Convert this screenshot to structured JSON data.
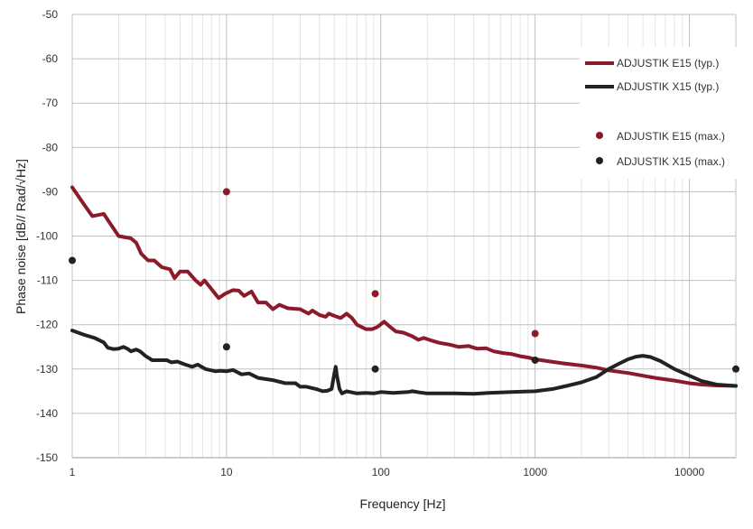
{
  "chart_data": {
    "type": "line",
    "title": "",
    "xlabel": "Frequency [Hz]",
    "ylabel": "Phase noise [dB// Rad/√Hz]",
    "xscale": "log",
    "xlim": [
      1,
      20000
    ],
    "ylim": [
      -150,
      -50
    ],
    "x_ticks": [
      "1",
      "10",
      "100",
      "1000",
      "10000"
    ],
    "y_ticks": [
      "-50",
      "-60",
      "-70",
      "-80",
      "-90",
      "-100",
      "-110",
      "-120",
      "-130",
      "-140",
      "-150"
    ],
    "grid": true,
    "legend_position": "top-right",
    "series": [
      {
        "name": "ADJUSTIK E15 (typ.)",
        "style": "line",
        "color": "#8b1a2b",
        "points": [
          [
            1,
            -89
          ],
          [
            1.2,
            -93
          ],
          [
            1.35,
            -95.5
          ],
          [
            1.6,
            -95
          ],
          [
            1.75,
            -97
          ],
          [
            2,
            -100
          ],
          [
            2.4,
            -100.5
          ],
          [
            2.6,
            -101.5
          ],
          [
            2.8,
            -104
          ],
          [
            3.1,
            -105.5
          ],
          [
            3.4,
            -105.5
          ],
          [
            3.8,
            -107
          ],
          [
            4.3,
            -107.5
          ],
          [
            4.6,
            -109.5
          ],
          [
            5,
            -108
          ],
          [
            5.6,
            -108
          ],
          [
            6.3,
            -110
          ],
          [
            6.8,
            -111
          ],
          [
            7.2,
            -110
          ],
          [
            8,
            -112
          ],
          [
            8.9,
            -114
          ],
          [
            9.8,
            -113
          ],
          [
            11,
            -112.2
          ],
          [
            12,
            -112.3
          ],
          [
            13,
            -113.5
          ],
          [
            14.5,
            -112.5
          ],
          [
            16,
            -115
          ],
          [
            18,
            -115
          ],
          [
            20,
            -116.5
          ],
          [
            22,
            -115.5
          ],
          [
            25,
            -116.3
          ],
          [
            30,
            -116.5
          ],
          [
            34,
            -117.5
          ],
          [
            36,
            -116.8
          ],
          [
            40,
            -117.8
          ],
          [
            44,
            -118.2
          ],
          [
            46,
            -117.5
          ],
          [
            50,
            -118
          ],
          [
            55,
            -118.5
          ],
          [
            60,
            -117.5
          ],
          [
            65,
            -118.5
          ],
          [
            70,
            -120
          ],
          [
            80,
            -121
          ],
          [
            88,
            -121
          ],
          [
            95,
            -120.5
          ],
          [
            105,
            -119.3
          ],
          [
            115,
            -120.5
          ],
          [
            125,
            -121.5
          ],
          [
            140,
            -121.8
          ],
          [
            160,
            -122.6
          ],
          [
            175,
            -123.4
          ],
          [
            190,
            -123
          ],
          [
            210,
            -123.5
          ],
          [
            240,
            -124.1
          ],
          [
            280,
            -124.5
          ],
          [
            320,
            -125
          ],
          [
            370,
            -124.8
          ],
          [
            420,
            -125.4
          ],
          [
            480,
            -125.3
          ],
          [
            540,
            -126
          ],
          [
            620,
            -126.4
          ],
          [
            700,
            -126.6
          ],
          [
            800,
            -127.1
          ],
          [
            900,
            -127.4
          ],
          [
            1000,
            -127.8
          ],
          [
            1200,
            -128.2
          ],
          [
            1500,
            -128.7
          ],
          [
            2000,
            -129.2
          ],
          [
            2500,
            -129.7
          ],
          [
            3000,
            -130.3
          ],
          [
            4000,
            -130.9
          ],
          [
            5000,
            -131.5
          ],
          [
            6000,
            -132
          ],
          [
            8000,
            -132.6
          ],
          [
            10000,
            -133.2
          ],
          [
            12000,
            -133.5
          ],
          [
            15000,
            -133.7
          ],
          [
            20000,
            -133.8
          ]
        ]
      },
      {
        "name": "ADJUSTIK X15 (typ.)",
        "style": "line",
        "color": "#222222",
        "points": [
          [
            1,
            -121.3
          ],
          [
            1.2,
            -122.3
          ],
          [
            1.4,
            -123
          ],
          [
            1.6,
            -124
          ],
          [
            1.7,
            -125.2
          ],
          [
            1.85,
            -125.5
          ],
          [
            2,
            -125.4
          ],
          [
            2.15,
            -125
          ],
          [
            2.3,
            -125.5
          ],
          [
            2.4,
            -126
          ],
          [
            2.6,
            -125.6
          ],
          [
            2.75,
            -126
          ],
          [
            3,
            -127.1
          ],
          [
            3.3,
            -128
          ],
          [
            3.7,
            -128
          ],
          [
            4.1,
            -128
          ],
          [
            4.4,
            -128.5
          ],
          [
            4.8,
            -128.3
          ],
          [
            5.4,
            -129
          ],
          [
            6,
            -129.5
          ],
          [
            6.5,
            -129
          ],
          [
            7.3,
            -130
          ],
          [
            8.5,
            -130.5
          ],
          [
            9,
            -130.4
          ],
          [
            10,
            -130.5
          ],
          [
            11,
            -130.2
          ],
          [
            12.5,
            -131.2
          ],
          [
            14,
            -131
          ],
          [
            16,
            -132
          ],
          [
            20,
            -132.5
          ],
          [
            24,
            -133.2
          ],
          [
            28,
            -133.2
          ],
          [
            30,
            -134
          ],
          [
            33,
            -134
          ],
          [
            38,
            -134.5
          ],
          [
            42,
            -135
          ],
          [
            45,
            -134.9
          ],
          [
            48,
            -134.5
          ],
          [
            50,
            -131
          ],
          [
            51,
            -129.5
          ],
          [
            52,
            -131.5
          ],
          [
            54,
            -134.5
          ],
          [
            56,
            -135.5
          ],
          [
            60,
            -135
          ],
          [
            70,
            -135.5
          ],
          [
            80,
            -135.4
          ],
          [
            90,
            -135.5
          ],
          [
            100,
            -135.2
          ],
          [
            120,
            -135.4
          ],
          [
            150,
            -135.2
          ],
          [
            160,
            -135
          ],
          [
            180,
            -135.3
          ],
          [
            200,
            -135.5
          ],
          [
            300,
            -135.5
          ],
          [
            400,
            -135.6
          ],
          [
            500,
            -135.4
          ],
          [
            700,
            -135.2
          ],
          [
            1000,
            -135
          ],
          [
            1300,
            -134.5
          ],
          [
            1600,
            -133.8
          ],
          [
            2000,
            -133
          ],
          [
            2500,
            -131.8
          ],
          [
            3000,
            -130
          ],
          [
            3500,
            -128.8
          ],
          [
            4000,
            -127.8
          ],
          [
            4500,
            -127.2
          ],
          [
            5000,
            -127
          ],
          [
            5600,
            -127.3
          ],
          [
            6500,
            -128.2
          ],
          [
            8000,
            -130
          ],
          [
            10000,
            -131.5
          ],
          [
            12000,
            -132.7
          ],
          [
            15000,
            -133.5
          ],
          [
            20000,
            -133.8
          ]
        ]
      },
      {
        "name": "ADJUSTIK E15 (max.)",
        "style": "markers",
        "color": "#8b1a2b",
        "points": [
          [
            10,
            -90
          ],
          [
            92,
            -113
          ],
          [
            1000,
            -122
          ]
        ]
      },
      {
        "name": "ADJUSTIK X15 (max.)",
        "style": "markers",
        "color": "#222222",
        "points": [
          [
            1,
            -105.5
          ],
          [
            10,
            -125
          ],
          [
            92,
            -130
          ],
          [
            1000,
            -128
          ],
          [
            20000,
            -130
          ]
        ]
      }
    ]
  }
}
